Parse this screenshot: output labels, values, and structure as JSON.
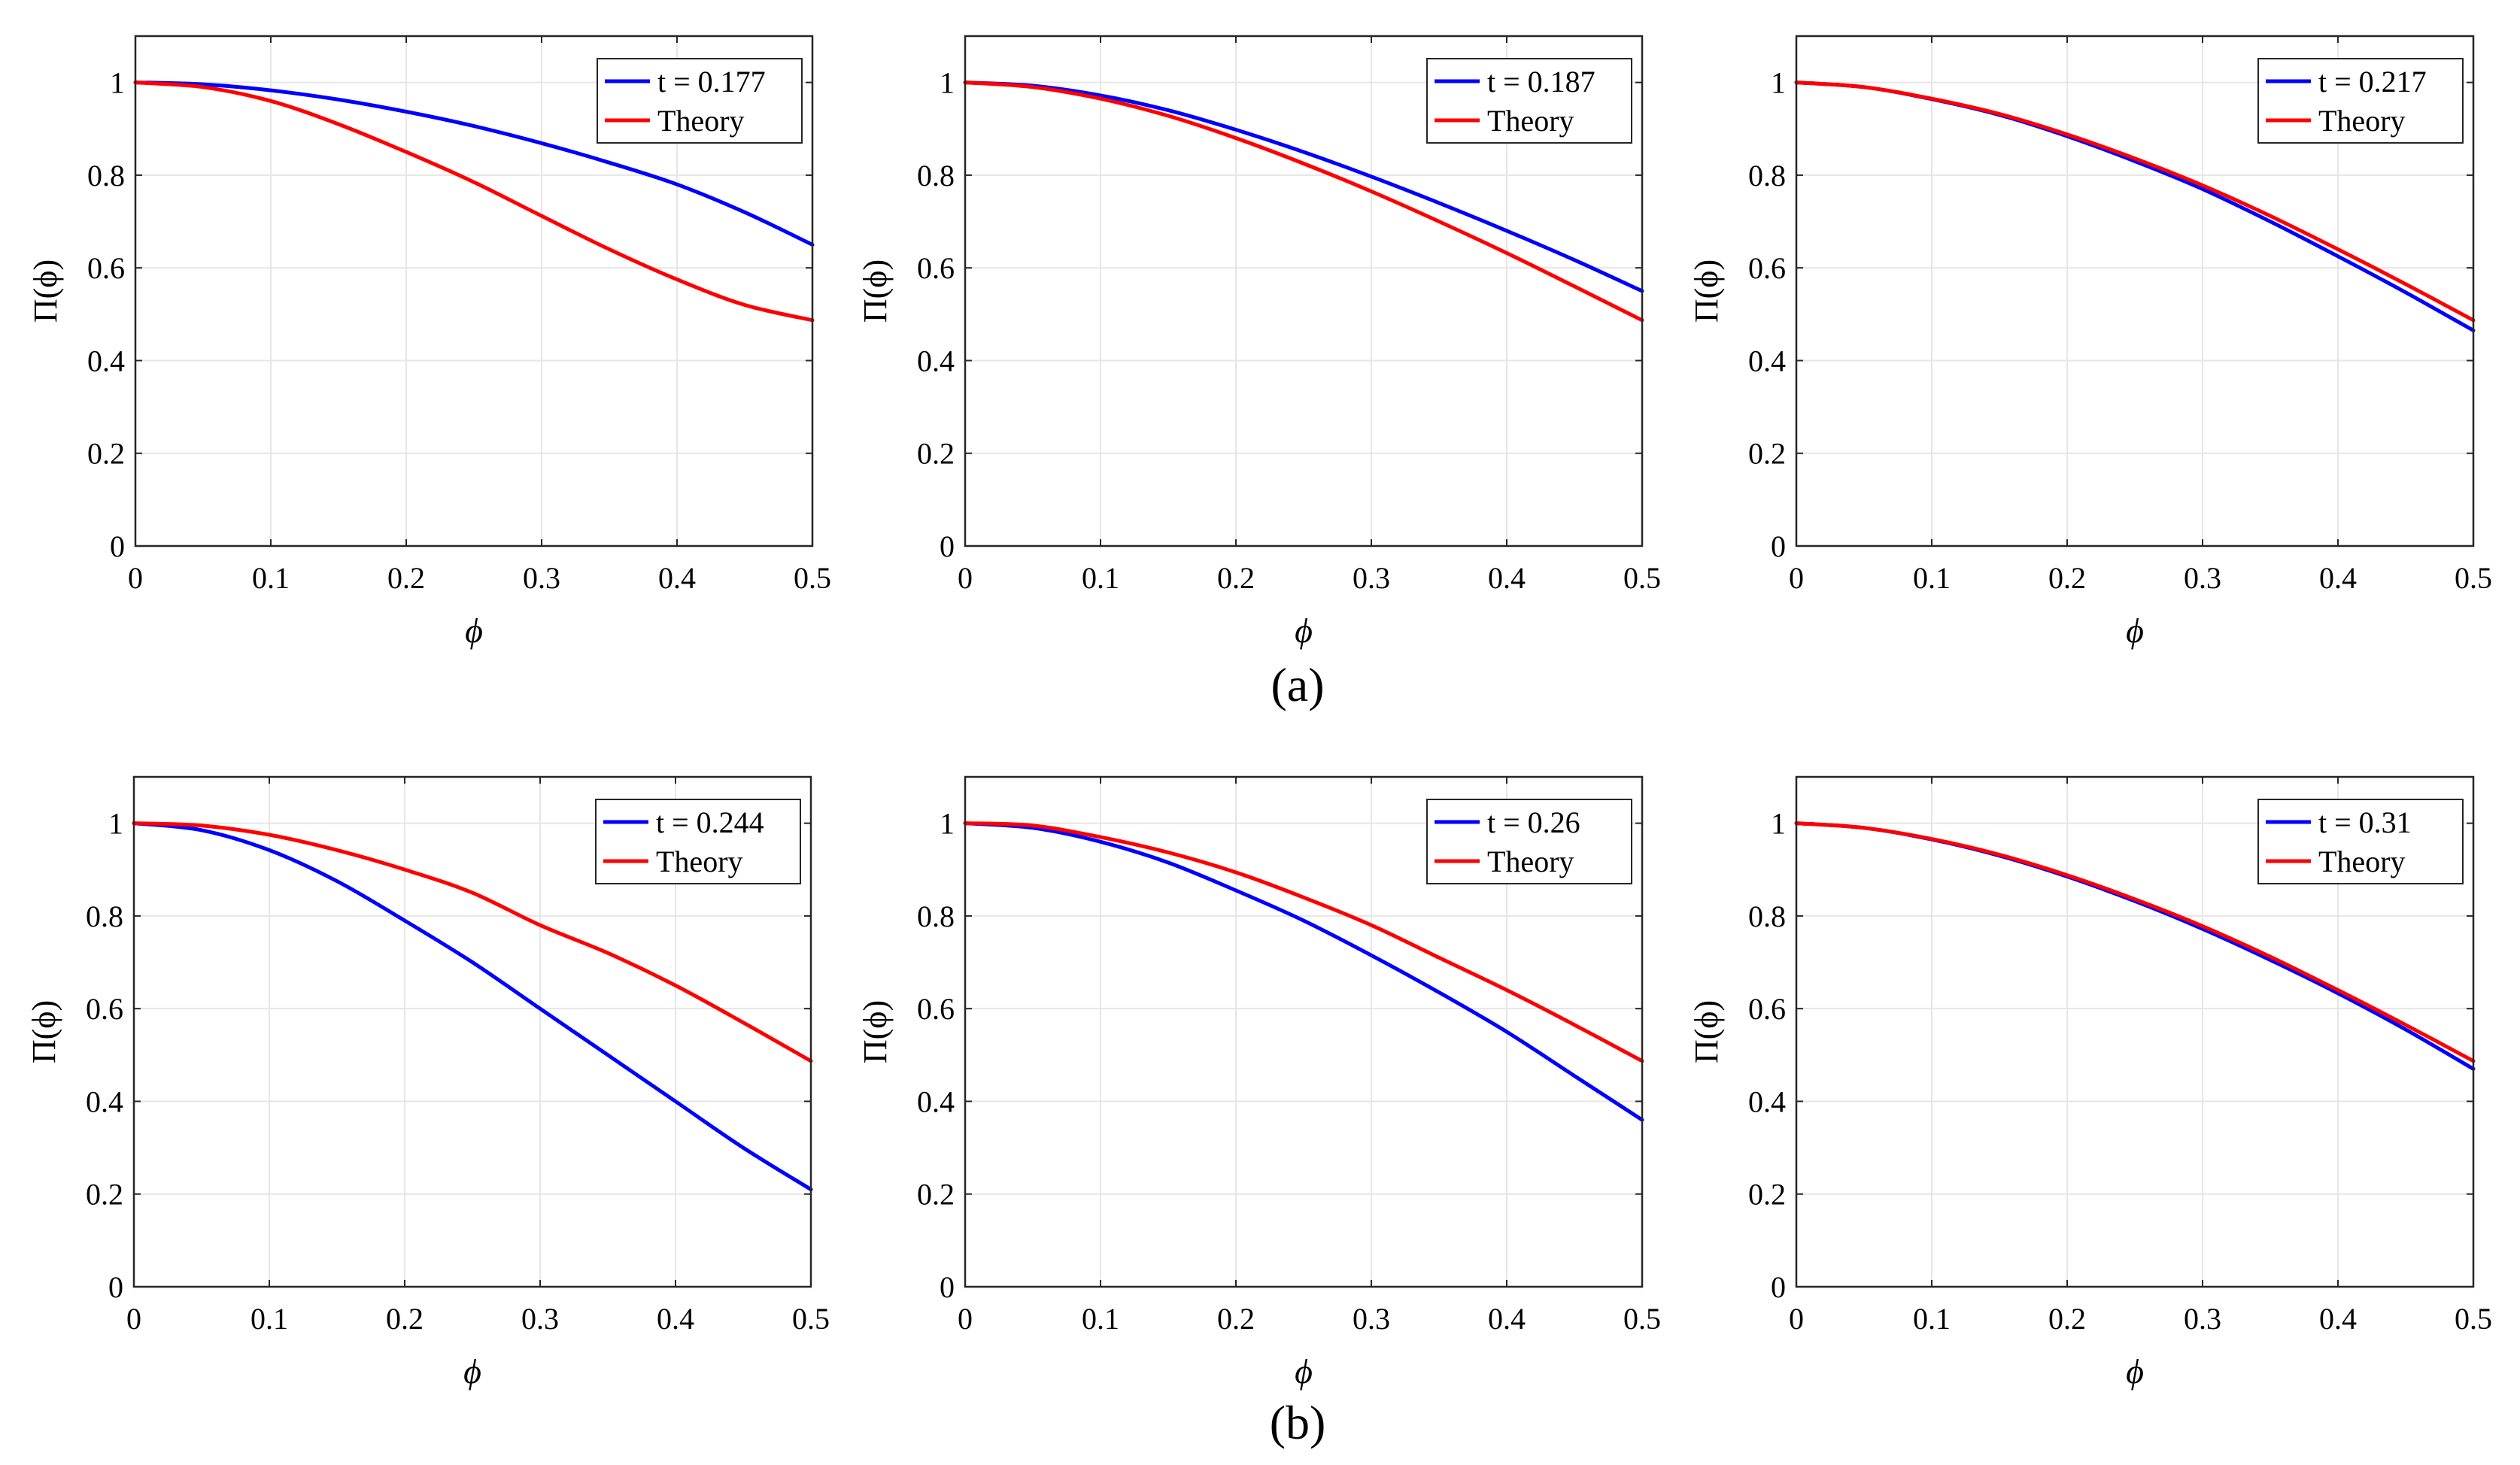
{
  "colors": {
    "simulation": "#0000ff",
    "theory": "#ff0000",
    "grid": "#e6e6e6",
    "axis": "#262626"
  },
  "row_labels": [
    "(a)",
    "(b)"
  ],
  "chart_data": [
    {
      "type": "line",
      "row": "a",
      "title": "",
      "xlabel": "ϕ",
      "ylabel": "Π(ϕ)",
      "xlim": [
        0,
        0.5
      ],
      "ylim": [
        0,
        1.1
      ],
      "xticks": [
        0,
        0.1,
        0.2,
        0.3,
        0.4,
        0.5
      ],
      "xtick_labels": [
        "0",
        "0.1",
        "0.2",
        "0.3",
        "0.4",
        "0.5"
      ],
      "yticks": [
        0,
        0.2,
        0.4,
        0.6,
        0.8,
        1
      ],
      "ytick_labels": [
        "0",
        "0.2",
        "0.4",
        "0.6",
        "0.8",
        "1"
      ],
      "grid": true,
      "legend_position": "top-right",
      "x": [
        0,
        0.05,
        0.1,
        0.15,
        0.2,
        0.25,
        0.3,
        0.35,
        0.4,
        0.45,
        0.5
      ],
      "series": [
        {
          "name": "t = 0.177",
          "role": "simulation",
          "values": [
            1,
            0.996,
            0.983,
            0.963,
            0.937,
            0.906,
            0.869,
            0.827,
            0.78,
            0.72,
            0.65
          ]
        },
        {
          "name": "Theory",
          "role": "theory",
          "values": [
            1,
            0.99,
            0.96,
            0.91,
            0.85,
            0.785,
            0.712,
            0.64,
            0.575,
            0.52,
            0.487
          ]
        }
      ]
    },
    {
      "type": "line",
      "row": "a",
      "title": "",
      "xlabel": "ϕ",
      "ylabel": "Π(ϕ)",
      "xlim": [
        0,
        0.5
      ],
      "ylim": [
        0,
        1.1
      ],
      "xticks": [
        0,
        0.1,
        0.2,
        0.3,
        0.4,
        0.5
      ],
      "xtick_labels": [
        "0",
        "0.1",
        "0.2",
        "0.3",
        "0.4",
        "0.5"
      ],
      "yticks": [
        0,
        0.2,
        0.4,
        0.6,
        0.8,
        1
      ],
      "ytick_labels": [
        "0",
        "0.2",
        "0.4",
        "0.6",
        "0.8",
        "1"
      ],
      "grid": true,
      "legend_position": "top-right",
      "x": [
        0,
        0.05,
        0.1,
        0.15,
        0.2,
        0.25,
        0.3,
        0.35,
        0.4,
        0.45,
        0.5
      ],
      "series": [
        {
          "name": "t = 0.187",
          "role": "simulation",
          "values": [
            1,
            0.993,
            0.972,
            0.94,
            0.898,
            0.85,
            0.797,
            0.74,
            0.68,
            0.617,
            0.55
          ]
        },
        {
          "name": "Theory",
          "role": "theory",
          "values": [
            1,
            0.99,
            0.965,
            0.928,
            0.88,
            0.825,
            0.765,
            0.7,
            0.632,
            0.56,
            0.487
          ]
        }
      ]
    },
    {
      "type": "line",
      "row": "a",
      "title": "",
      "xlabel": "ϕ",
      "ylabel": "Π(ϕ)",
      "xlim": [
        0,
        0.5
      ],
      "ylim": [
        0,
        1.1
      ],
      "xticks": [
        0,
        0.1,
        0.2,
        0.3,
        0.4,
        0.5
      ],
      "xtick_labels": [
        "0",
        "0.1",
        "0.2",
        "0.3",
        "0.4",
        "0.5"
      ],
      "yticks": [
        0,
        0.2,
        0.4,
        0.6,
        0.8,
        1
      ],
      "ytick_labels": [
        "0",
        "0.2",
        "0.4",
        "0.6",
        "0.8",
        "1"
      ],
      "grid": true,
      "legend_position": "top-right",
      "x": [
        0,
        0.05,
        0.1,
        0.15,
        0.2,
        0.25,
        0.3,
        0.35,
        0.4,
        0.45,
        0.5
      ],
      "series": [
        {
          "name": "t = 0.217",
          "role": "simulation",
          "values": [
            1,
            0.99,
            0.964,
            0.93,
            0.884,
            0.83,
            0.77,
            0.7,
            0.625,
            0.547,
            0.465
          ]
        },
        {
          "name": "Theory",
          "role": "theory",
          "values": [
            1,
            0.99,
            0.965,
            0.932,
            0.888,
            0.836,
            0.778,
            0.712,
            0.64,
            0.565,
            0.487
          ]
        }
      ]
    },
    {
      "type": "line",
      "row": "b",
      "title": "",
      "xlabel": "ϕ",
      "ylabel": "Π(ϕ)",
      "xlim": [
        0,
        0.5
      ],
      "ylim": [
        0,
        1.1
      ],
      "xticks": [
        0,
        0.1,
        0.2,
        0.3,
        0.4,
        0.5
      ],
      "xtick_labels": [
        "0",
        "0.1",
        "0.2",
        "0.3",
        "0.4",
        "0.5"
      ],
      "yticks": [
        0,
        0.2,
        0.4,
        0.6,
        0.8,
        1
      ],
      "ytick_labels": [
        "0",
        "0.2",
        "0.4",
        "0.6",
        "0.8",
        "1"
      ],
      "grid": true,
      "legend_position": "top-right",
      "x": [
        0,
        0.05,
        0.1,
        0.15,
        0.2,
        0.25,
        0.3,
        0.35,
        0.4,
        0.45,
        0.5
      ],
      "series": [
        {
          "name": "t = 0.244",
          "role": "simulation",
          "values": [
            1,
            0.985,
            0.942,
            0.875,
            0.79,
            0.7,
            0.6,
            0.5,
            0.4,
            0.3,
            0.21
          ]
        },
        {
          "name": "Theory",
          "role": "theory",
          "values": [
            1,
            0.995,
            0.975,
            0.942,
            0.9,
            0.85,
            0.78,
            0.72,
            0.65,
            0.57,
            0.487
          ]
        }
      ]
    },
    {
      "type": "line",
      "row": "b",
      "title": "",
      "xlabel": "ϕ",
      "ylabel": "Π(ϕ)",
      "xlim": [
        0,
        0.5
      ],
      "ylim": [
        0,
        1.1
      ],
      "xticks": [
        0,
        0.1,
        0.2,
        0.3,
        0.4,
        0.5
      ],
      "xtick_labels": [
        "0",
        "0.1",
        "0.2",
        "0.3",
        "0.4",
        "0.5"
      ],
      "yticks": [
        0,
        0.2,
        0.4,
        0.6,
        0.8,
        1
      ],
      "ytick_labels": [
        "0",
        "0.2",
        "0.4",
        "0.6",
        "0.8",
        "1"
      ],
      "grid": true,
      "legend_position": "top-right",
      "x": [
        0,
        0.05,
        0.1,
        0.15,
        0.2,
        0.25,
        0.3,
        0.35,
        0.4,
        0.45,
        0.5
      ],
      "series": [
        {
          "name": "t = 0.26",
          "role": "simulation",
          "values": [
            1,
            0.99,
            0.96,
            0.915,
            0.855,
            0.79,
            0.715,
            0.635,
            0.55,
            0.455,
            0.36
          ]
        },
        {
          "name": "Theory",
          "role": "theory",
          "values": [
            1,
            0.995,
            0.97,
            0.937,
            0.894,
            0.84,
            0.78,
            0.71,
            0.64,
            0.565,
            0.487
          ]
        }
      ]
    },
    {
      "type": "line",
      "row": "b",
      "title": "",
      "xlabel": "ϕ",
      "ylabel": "Π(ϕ)",
      "xlim": [
        0,
        0.5
      ],
      "ylim": [
        0,
        1.1
      ],
      "xticks": [
        0,
        0.1,
        0.2,
        0.3,
        0.4,
        0.5
      ],
      "xtick_labels": [
        "0",
        "0.1",
        "0.2",
        "0.3",
        "0.4",
        "0.5"
      ],
      "yticks": [
        0,
        0.2,
        0.4,
        0.6,
        0.8,
        1
      ],
      "ytick_labels": [
        "0",
        "0.2",
        "0.4",
        "0.6",
        "0.8",
        "1"
      ],
      "grid": true,
      "legend_position": "top-right",
      "x": [
        0,
        0.05,
        0.1,
        0.15,
        0.2,
        0.25,
        0.3,
        0.35,
        0.4,
        0.45,
        0.5
      ],
      "series": [
        {
          "name": "t = 0.31",
          "role": "simulation",
          "values": [
            1,
            0.99,
            0.965,
            0.93,
            0.885,
            0.832,
            0.772,
            0.705,
            0.633,
            0.555,
            0.47
          ]
        },
        {
          "name": "Theory",
          "role": "theory",
          "values": [
            1,
            0.99,
            0.966,
            0.932,
            0.888,
            0.836,
            0.778,
            0.712,
            0.64,
            0.565,
            0.487
          ]
        }
      ]
    }
  ]
}
